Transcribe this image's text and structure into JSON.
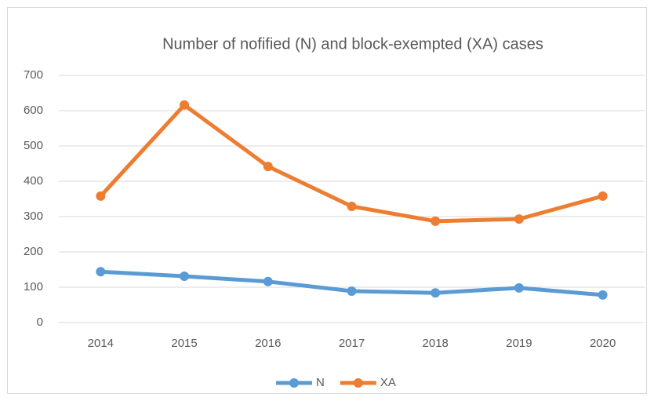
{
  "chart_data": {
    "type": "line",
    "title": "Number of nofified (N) and block-exempted (XA) cases",
    "categories": [
      "2014",
      "2015",
      "2016",
      "2017",
      "2018",
      "2019",
      "2020"
    ],
    "series": [
      {
        "name": "N",
        "color": "#5b9bd5",
        "values": [
          144,
          131,
          116,
          89,
          84,
          98,
          78
        ]
      },
      {
        "name": "XA",
        "color": "#ed7d31",
        "values": [
          358,
          616,
          442,
          329,
          287,
          293,
          358
        ]
      }
    ],
    "ylim": [
      0,
      700
    ],
    "yticks": [
      0,
      100,
      200,
      300,
      400,
      500,
      600,
      700
    ],
    "grid": true,
    "legend": "bottom"
  }
}
